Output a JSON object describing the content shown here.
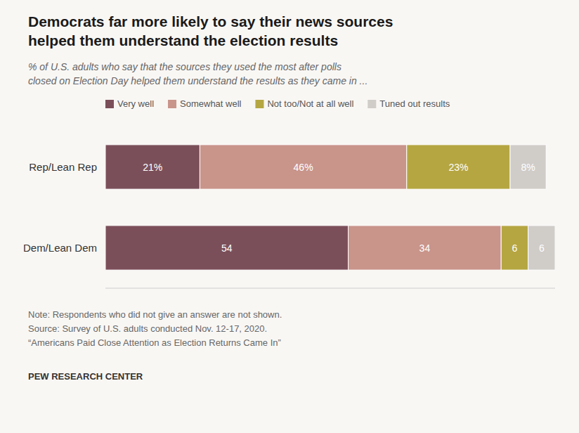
{
  "chart_data": {
    "type": "bar",
    "orientation": "horizontal",
    "stacked": true,
    "data_labels": true,
    "tick_labels": "y",
    "legend": "upper left",
    "grid": false,
    "title": "Democrats far more likely to say their news sources\nhelped them understand the election results",
    "subtitle": "% of U.S. adults who say that the sources they used the most after polls\nclosed on Election Day helped them understand the results as they came in ...",
    "categories": [
      "Rep/Lean Rep",
      "Dem/Lean Dem"
    ],
    "series": [
      {
        "name": "Very well",
        "color": "#7b4f5a",
        "values": [
          21,
          54
        ],
        "value_labels": [
          "21%",
          "54"
        ]
      },
      {
        "name": "Somewhat well",
        "color": "#c9948a",
        "values": [
          46,
          34
        ],
        "value_labels": [
          "46%",
          "34"
        ]
      },
      {
        "name": "Not too/Not at all well",
        "color": "#b5a642",
        "values": [
          23,
          6
        ],
        "value_labels": [
          "23%",
          "6"
        ]
      },
      {
        "name": "Tuned out results",
        "color": "#d0ccc8",
        "values": [
          8,
          6
        ],
        "value_labels": [
          "8%",
          "6"
        ]
      }
    ],
    "xlim": [
      0,
      100
    ],
    "annotations": [
      "Note: Respondents who did not give an answer are not shown.",
      "Source: Survey of U.S. adults conducted Nov. 12-17, 2020.",
      "“Americans Paid Close Attention as Election Returns Came In”",
      "PEW RESEARCH CENTER"
    ]
  }
}
